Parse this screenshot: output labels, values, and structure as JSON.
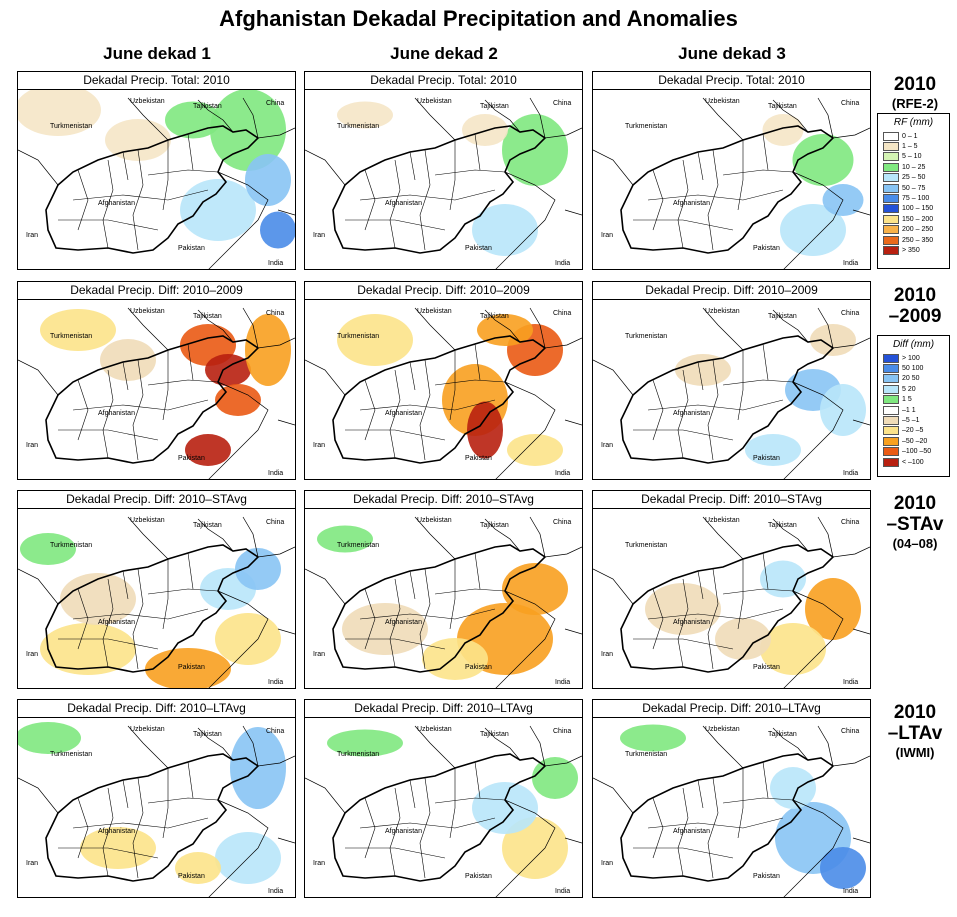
{
  "title": "Afghanistan Dekadal Precipitation and Anomalies",
  "columns": [
    "June dekad 1",
    "June dekad 2",
    "June dekad 3"
  ],
  "rows": [
    {
      "label_lines": [
        "2010"
      ],
      "sub": "(RFE-2)",
      "panel_title": "Dekadal Precip. Total: 2010",
      "scheme": "rf"
    },
    {
      "label_lines": [
        "2010",
        "–2009"
      ],
      "sub": "",
      "panel_title": "Dekadal Precip. Diff:  2010–2009",
      "scheme": "diff"
    },
    {
      "label_lines": [
        "2010",
        "–STAv"
      ],
      "sub": "(04–08)",
      "panel_title": "Dekadal Precip. Diff:  2010–STAvg",
      "scheme": "diff"
    },
    {
      "label_lines": [
        "2010",
        "–LTAv"
      ],
      "sub": "(IWMI)",
      "panel_title": "Dekadal Precip. Diff:  2010–LTAvg",
      "scheme": "diff"
    }
  ],
  "map_labels": {
    "uzbekistan": "Uzbekistan",
    "tajikistan": "Tajikistan",
    "china": "China",
    "turkmenistan": "Turkmenistan",
    "afghanistan": "Afghanistan",
    "iran": "Iran",
    "pakistan": "Pakistan",
    "india": "India"
  },
  "legend_rf": {
    "title": "RF (mm)",
    "items": [
      {
        "label": "0 – 1",
        "color": "#ffffff"
      },
      {
        "label": "1 – 5",
        "color": "#f5e6c6"
      },
      {
        "label": "5 – 10",
        "color": "#d4f4b4"
      },
      {
        "label": "10 – 25",
        "color": "#80e880"
      },
      {
        "label": "25 – 50",
        "color": "#b8e6fa"
      },
      {
        "label": "50 – 75",
        "color": "#88c4f4"
      },
      {
        "label": "75 – 100",
        "color": "#4a8ce8"
      },
      {
        "label": "100 – 150",
        "color": "#2452d8"
      },
      {
        "label": "150 – 200",
        "color": "#fce38a"
      },
      {
        "label": "200 – 250",
        "color": "#f8b24a"
      },
      {
        "label": "250 – 350",
        "color": "#ea6a1c"
      },
      {
        "label": "> 350",
        "color": "#b82010"
      }
    ]
  },
  "legend_diff": {
    "title": "Diff (mm)",
    "items": [
      {
        "label": "> 100",
        "color": "#2452d8"
      },
      {
        "label": "50  100",
        "color": "#4a8ce8"
      },
      {
        "label": "20  50",
        "color": "#88c4f4"
      },
      {
        "label": "5  20",
        "color": "#b8e6fa"
      },
      {
        "label": "1  5",
        "color": "#80e880"
      },
      {
        "label": "–1  1",
        "color": "#ffffff"
      },
      {
        "label": "–5  –1",
        "color": "#f0dcb8"
      },
      {
        "label": "–20  –5",
        "color": "#fce38a"
      },
      {
        "label": "–50  –20",
        "color": "#f8a020"
      },
      {
        "label": "–100  –50",
        "color": "#ea5a14"
      },
      {
        "label": "< –100",
        "color": "#b82010"
      }
    ]
  },
  "colors": {
    "border": "#000000",
    "background": "#ffffff"
  }
}
